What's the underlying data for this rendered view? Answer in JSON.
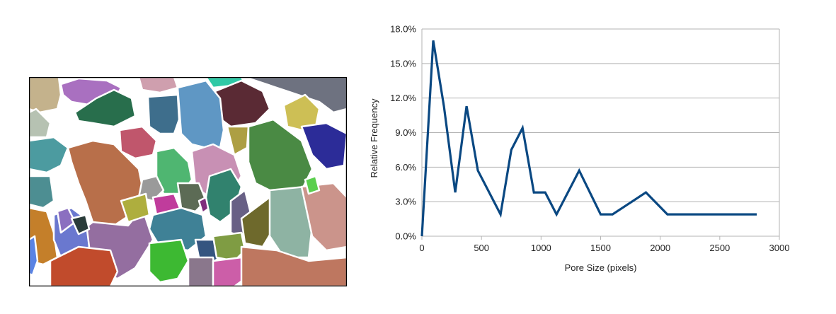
{
  "segmentation_image": {
    "background": "#ffffff",
    "border_color": "#000000",
    "region_colors": [
      "#c4b28c",
      "#a970c0",
      "#286e4c",
      "#cf9fae",
      "#2fc9a6",
      "#5a2a34",
      "#6e7280",
      "#3e6e8c",
      "#5f97c4",
      "#b6c2b2",
      "#cdbf55",
      "#2c2c98",
      "#4c9ba0",
      "#b86f4a",
      "#c0566c",
      "#4fb671",
      "#c890b4",
      "#4a8a44",
      "#ad9f43",
      "#946ea0",
      "#4d8e92",
      "#c47f2a",
      "#6a78cf",
      "#8b6fc0",
      "#c14b2c",
      "#9a9a9a",
      "#5c6b55",
      "#c03c9c",
      "#7f2e7d",
      "#aeae3e",
      "#31826e",
      "#686085",
      "#6e692c",
      "#8eb3a3",
      "#cb948b",
      "#3f8196",
      "#3db932",
      "#355580",
      "#7f9c43",
      "#8a778c",
      "#cc5ea8",
      "#be7760",
      "#5bcf4e",
      "#5a83e4",
      "#2a3c3a"
    ]
  },
  "chart_data": {
    "type": "line",
    "title": "",
    "xlabel": "Pore Size (pixels)",
    "ylabel": "Relative Frequency",
    "xlim": [
      0,
      3000
    ],
    "ylim": [
      0,
      18
    ],
    "x_ticks": [
      "0",
      "500",
      "1000",
      "1500",
      "2000",
      "2500",
      "3000"
    ],
    "y_ticks": [
      "0.0%",
      "3.0%",
      "6.0%",
      "9.0%",
      "12.0%",
      "15.0%",
      "18.0%"
    ],
    "grid": "horizontal",
    "legend": "none",
    "series": [
      {
        "color": "#0a4882",
        "x": [
          0,
          95,
          185,
          280,
          375,
          470,
          565,
          660,
          750,
          845,
          940,
          1035,
          1130,
          1320,
          1500,
          1600,
          1880,
          2060,
          2250,
          2450,
          2600,
          2810
        ],
        "y": [
          0.0,
          17.0,
          11.3,
          3.8,
          11.3,
          5.7,
          3.8,
          1.9,
          7.5,
          9.4,
          3.8,
          3.8,
          1.9,
          5.7,
          1.9,
          1.9,
          3.8,
          1.9,
          1.9,
          1.9,
          1.9,
          1.9
        ]
      }
    ]
  }
}
